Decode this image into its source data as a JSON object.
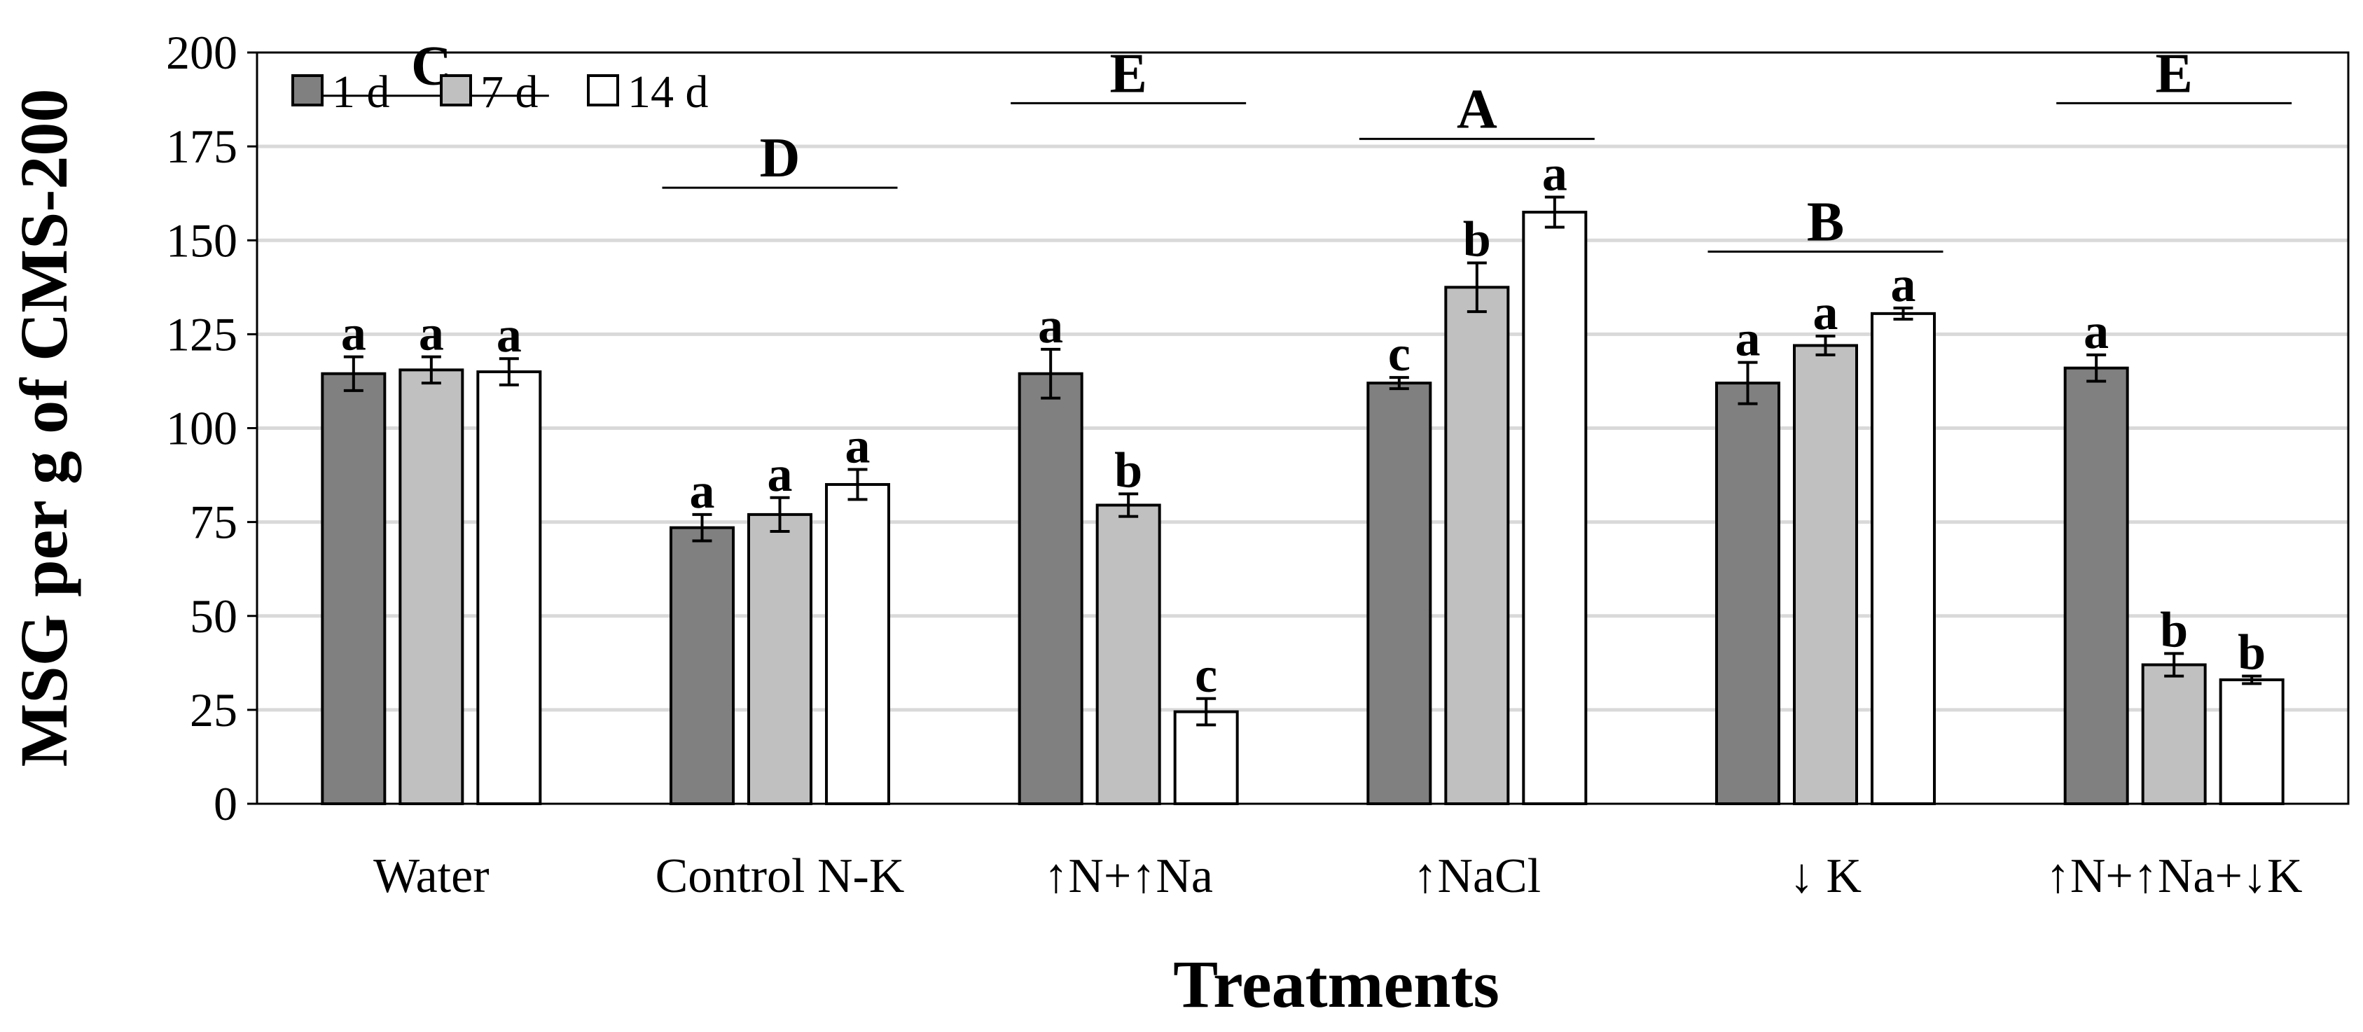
{
  "chart_data": {
    "type": "bar",
    "title": "",
    "xlabel": "Treatments",
    "ylabel": "MSG per g of CMS-200",
    "ylim": [
      0,
      200
    ],
    "yticks": [
      0,
      25,
      50,
      75,
      100,
      125,
      150,
      175,
      200
    ],
    "grid": true,
    "legend_position": "top-left",
    "categories": [
      "Water",
      "Control N-K",
      "↑N+↑Na",
      "↑NaCl",
      "↓ K",
      "↑N+↑Na+↓K"
    ],
    "series": [
      {
        "name": "1 d",
        "color": "#808080",
        "values": [
          114.5,
          73.5,
          114.5,
          112,
          112,
          116
        ],
        "errors": [
          4.5,
          3.5,
          6.5,
          1.5,
          5.5,
          3.5
        ],
        "letters": [
          "a",
          "a",
          "a",
          "c",
          "a",
          "a"
        ]
      },
      {
        "name": "7 d",
        "color": "#c0c0c0",
        "values": [
          115.5,
          77,
          79.5,
          137.5,
          122,
          37
        ],
        "errors": [
          3.5,
          4.5,
          3,
          6.5,
          2.5,
          3
        ],
        "letters": [
          "a",
          "a",
          "b",
          "b",
          "a",
          "b"
        ]
      },
      {
        "name": "14 d",
        "color": "#ffffff",
        "values": [
          115,
          85,
          24.5,
          157.5,
          130.5,
          33
        ],
        "errors": [
          3.5,
          4,
          3.5,
          4,
          1.5,
          1
        ],
        "letters": [
          "a",
          "a",
          "c",
          "a",
          "a",
          "b"
        ]
      }
    ],
    "group_letters": [
      "C",
      "D",
      "E",
      "A",
      "B",
      "E"
    ],
    "group_letter_values": [
      188.5,
      164,
      186.5,
      177,
      147,
      186.5
    ]
  }
}
